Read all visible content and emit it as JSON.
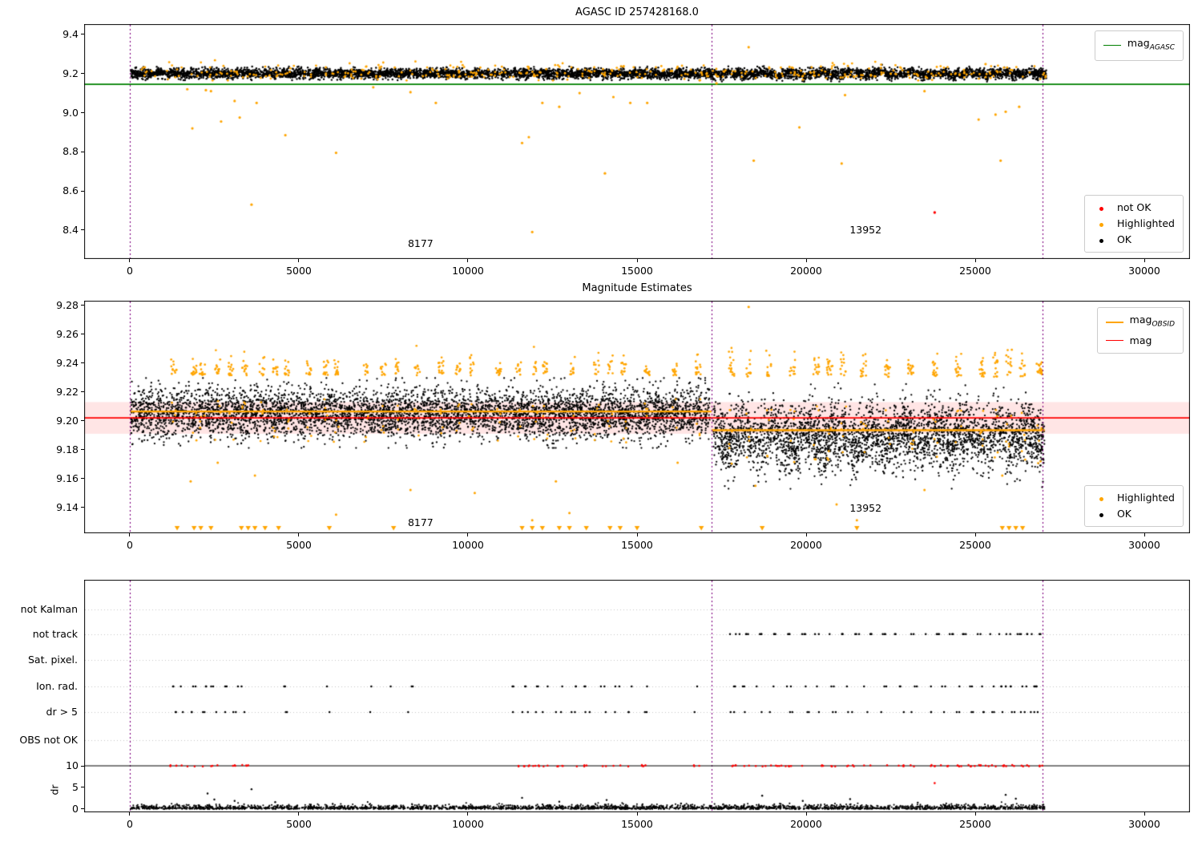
{
  "figure": {
    "background": "#ffffff",
    "vline_color": "#800080",
    "grid_color": "#b8b8b8",
    "xticklabels": [
      "0",
      "5000",
      "10000",
      "15000",
      "20000",
      "25000",
      "30000"
    ]
  },
  "chart_data": [
    {
      "type": "scatter",
      "title": "AGASC ID 257428168.0",
      "xlim": [
        -1350,
        31350
      ],
      "ylim": [
        8.252,
        9.453
      ],
      "xticks": [
        0,
        5000,
        10000,
        15000,
        20000,
        25000,
        30000
      ],
      "yticks": [
        9.4,
        9.2,
        9.0,
        8.8,
        8.6,
        8.4
      ],
      "yticklabels": [
        "9.4",
        "9.2",
        "9.0",
        "8.8",
        "8.6",
        "8.4"
      ],
      "vlines": [
        0,
        17200,
        27000
      ],
      "hline": {
        "y": 9.145,
        "color": "#008000"
      },
      "annotations": [
        {
          "text": "8177",
          "x": 8480,
          "y": 8.33
        },
        {
          "text": "13952",
          "x": 21640,
          "y": 8.4
        }
      ],
      "band": {
        "x0": 30,
        "x1": 27100,
        "mean": 9.2,
        "sd": 0.013,
        "count": 6000
      },
      "band_highlight_count": 350,
      "outliers_highlighted": [
        [
          1700,
          9.12
        ],
        [
          1850,
          8.92
        ],
        [
          2250,
          9.115
        ],
        [
          2400,
          9.11
        ],
        [
          2700,
          8.955
        ],
        [
          3100,
          9.06
        ],
        [
          3250,
          8.975
        ],
        [
          3600,
          8.53
        ],
        [
          3750,
          9.05
        ],
        [
          4600,
          8.885
        ],
        [
          6100,
          8.795
        ],
        [
          7200,
          9.13
        ],
        [
          8300,
          9.105
        ],
        [
          9050,
          9.05
        ],
        [
          11600,
          8.845
        ],
        [
          11800,
          8.875
        ],
        [
          11900,
          8.39
        ],
        [
          12200,
          9.05
        ],
        [
          12700,
          9.03
        ],
        [
          13300,
          9.1
        ],
        [
          14050,
          8.69
        ],
        [
          14300,
          9.08
        ],
        [
          14800,
          9.05
        ],
        [
          15300,
          9.05
        ],
        [
          17350,
          9.15
        ],
        [
          18300,
          9.335
        ],
        [
          18450,
          8.755
        ],
        [
          19800,
          8.925
        ],
        [
          21050,
          8.74
        ],
        [
          21150,
          9.09
        ],
        [
          23500,
          9.11
        ],
        [
          25100,
          8.965
        ],
        [
          25600,
          8.99
        ],
        [
          25750,
          8.755
        ],
        [
          25900,
          9.005
        ],
        [
          26300,
          9.03
        ]
      ],
      "outliers_not_ok": [
        [
          23800,
          8.49
        ]
      ],
      "colors": {
        "ok": "#000000",
        "highlighted": "#FFA500",
        "not_ok": "#FF0000"
      },
      "legend_lines": [
        {
          "color": "#008000",
          "main": "mag",
          "sub": "AGASC",
          "width": 1.8
        }
      ],
      "legend_markers": [
        {
          "color": "#FF0000",
          "label": "not OK"
        },
        {
          "color": "#FFA500",
          "label": "Highlighted"
        },
        {
          "color": "#000000",
          "label": "OK"
        }
      ]
    },
    {
      "type": "scatter",
      "title": "Magnitude Estimates",
      "xlim": [
        -1350,
        31350
      ],
      "ylim": [
        9.122,
        9.2833
      ],
      "xticks": [
        0,
        5000,
        10000,
        15000,
        20000,
        25000,
        30000
      ],
      "yticks": [
        9.28,
        9.26,
        9.24,
        9.22,
        9.2,
        9.18,
        9.16,
        9.14
      ],
      "yticklabels": [
        "9.28",
        "9.26",
        "9.24",
        "9.22",
        "9.20",
        "9.18",
        "9.16",
        "9.14"
      ],
      "vlines": [
        0,
        17200,
        27000
      ],
      "mag_line": {
        "y": 9.202,
        "color": "#FF0000",
        "band": [
          9.191,
          9.213
        ],
        "band_color": "rgba(255,0,0,0.10)"
      },
      "obsid_segments": [
        {
          "x0": 30,
          "x1": 17200,
          "y": 9.2065
        },
        {
          "x0": 17200,
          "x1": 27050,
          "y": 9.1935
        }
      ],
      "obsid_color": "#FFA500",
      "annotations": [
        {
          "text": "8177",
          "x": 8480,
          "y": 9.129
        },
        {
          "text": "13952",
          "x": 21640,
          "y": 9.139
        }
      ],
      "segments": [
        {
          "x0": 30,
          "x1": 17150,
          "mean": 9.205,
          "sd": 0.0085,
          "count": 5200
        },
        {
          "x0": 17250,
          "x1": 27050,
          "mean": 9.189,
          "sd": 0.0115,
          "count": 3200
        }
      ],
      "highlight_columns_1": [
        1300,
        1900,
        2150,
        2600,
        3000,
        3400,
        3900,
        4300,
        4650,
        5300,
        5800,
        6100,
        7000,
        7500,
        7900,
        8500,
        9200,
        9700,
        10100,
        10900,
        11500,
        12000,
        12300,
        13100,
        13800,
        14200,
        14600,
        15300,
        16100,
        16800
      ],
      "highlight_columns_2": [
        17800,
        18300,
        18900,
        19600,
        20300,
        20700,
        21100,
        21700,
        22400,
        23100,
        23800,
        24500,
        25200,
        25600,
        26000,
        26400,
        26900
      ],
      "low_highlights": [
        [
          1800,
          9.158
        ],
        [
          2600,
          9.171
        ],
        [
          3700,
          9.162
        ],
        [
          6100,
          9.135
        ],
        [
          8300,
          9.152
        ],
        [
          10200,
          9.15
        ],
        [
          11900,
          9.131
        ],
        [
          12600,
          9.158
        ],
        [
          13000,
          9.136
        ],
        [
          16200,
          9.171
        ],
        [
          18500,
          9.155
        ],
        [
          20900,
          9.142
        ],
        [
          21500,
          9.131
        ],
        [
          23500,
          9.152
        ],
        [
          25800,
          9.162
        ]
      ],
      "top_outlier": [
        18300,
        9.279
      ],
      "triangles_x": [
        1400,
        1900,
        2100,
        2400,
        3300,
        3500,
        3700,
        4000,
        4400,
        5900,
        7800,
        11600,
        11900,
        12200,
        12700,
        13000,
        13500,
        14200,
        14500,
        15000,
        16900,
        18700,
        21500,
        25800,
        26000,
        26200,
        26400
      ],
      "colors": {
        "ok": "#000000",
        "highlighted": "#FFA500"
      },
      "legend_lines": [
        {
          "color": "#FFA500",
          "main": "mag",
          "sub": "OBSID",
          "width": 2.2
        },
        {
          "color": "#FF0000",
          "main": "mag",
          "sub": "",
          "width": 1.8
        }
      ],
      "legend_markers": [
        {
          "color": "#FFA500",
          "label": "Highlighted"
        },
        {
          "color": "#000000",
          "label": "OK"
        }
      ]
    },
    {
      "type": "flags",
      "xlim": [
        -1350,
        31350
      ],
      "xticks": [
        0,
        5000,
        10000,
        15000,
        20000,
        25000,
        30000
      ],
      "vlines": [
        0,
        17200,
        27000
      ],
      "flag_rows": [
        "not Kalman",
        "not track",
        "Sat. pixel.",
        "Ion. rad.",
        "dr > 5",
        "OBS not OK"
      ],
      "row_fractions": [
        0.128,
        0.234,
        0.345,
        0.459,
        0.569,
        0.69
      ],
      "dr_axis": {
        "label": "dr",
        "ticks": [
          {
            "v": 10,
            "label": "10"
          },
          {
            "v": 5,
            "label": "5"
          },
          {
            "v": 0,
            "label": "0"
          }
        ],
        "zero_frac": 0.986,
        "frac_per_unit": 0.0186,
        "limit": 10
      },
      "not_track_x": [
        17700,
        18000,
        18300,
        18700,
        19100,
        19500,
        19900,
        20300,
        20700,
        21100,
        21500,
        21900,
        22300,
        22700,
        23100,
        23500,
        23900,
        24300,
        24700,
        25100,
        25400,
        25700,
        26000,
        26300,
        26600,
        26900
      ],
      "ion_rad_x": [
        1300,
        1600,
        1900,
        2200,
        2500,
        2800,
        3100,
        3400,
        4600,
        5900,
        7100,
        7700,
        8300,
        11400,
        11700,
        12000,
        12300,
        12700,
        13100,
        13500,
        14000,
        14400,
        14800,
        15200,
        16800,
        17800,
        18200,
        18600,
        19000,
        19500,
        20000,
        20400,
        20800,
        21300,
        21800,
        22300,
        22800,
        23200,
        23700,
        24100,
        24500,
        24900,
        25200,
        25500,
        25700,
        25900,
        26100,
        26300,
        26500,
        26700,
        26900
      ],
      "dr5_x": [
        1300,
        1600,
        1900,
        2200,
        2500,
        2800,
        3100,
        3400,
        4600,
        5900,
        7100,
        8300,
        11400,
        11700,
        12000,
        12300,
        12700,
        13100,
        13500,
        14000,
        14400,
        14800,
        15200,
        16800,
        17800,
        18200,
        18600,
        19000,
        19500,
        20000,
        20400,
        20800,
        21300,
        21800,
        22300,
        22800,
        23200,
        23700,
        24100,
        24500,
        24900,
        25200,
        25500,
        25800,
        26100,
        26400,
        26700,
        26900
      ],
      "dr_points": {
        "count": 2600,
        "x0": 30,
        "x1": 27100
      },
      "dr_high_black": [
        [
          2300,
          3.6
        ],
        [
          2500,
          2.2
        ],
        [
          3100,
          1.9
        ],
        [
          3600,
          4.6
        ],
        [
          4300,
          1.6
        ],
        [
          6000,
          1.2
        ],
        [
          11600,
          2.6
        ],
        [
          12700,
          1.7
        ],
        [
          14100,
          2.1
        ],
        [
          16300,
          1.3
        ],
        [
          18700,
          3.1
        ],
        [
          19900,
          1.9
        ],
        [
          21300,
          2.3
        ],
        [
          23300,
          1.5
        ],
        [
          25900,
          3.3
        ],
        [
          26200,
          2.4
        ]
      ],
      "dr_red_clipped_x": [
        1300,
        1600,
        1900,
        2200,
        2500,
        3100,
        3400,
        11400,
        11700,
        12000,
        12300,
        12700,
        13100,
        13500,
        14000,
        14400,
        14800,
        15200,
        16800,
        17800,
        18200,
        18600,
        18900,
        19200,
        19500,
        20000,
        20400,
        20800,
        21300,
        21800,
        22300,
        22800,
        23200,
        23700,
        24100,
        24500,
        24900,
        25100,
        25300,
        25500,
        25700,
        25900,
        26100,
        26300,
        26500,
        26700,
        26900
      ],
      "dr_red_other": [
        [
          23800,
          6.0
        ]
      ],
      "colors": {
        "ok": "#000000",
        "bad": "#FF0000"
      }
    }
  ]
}
